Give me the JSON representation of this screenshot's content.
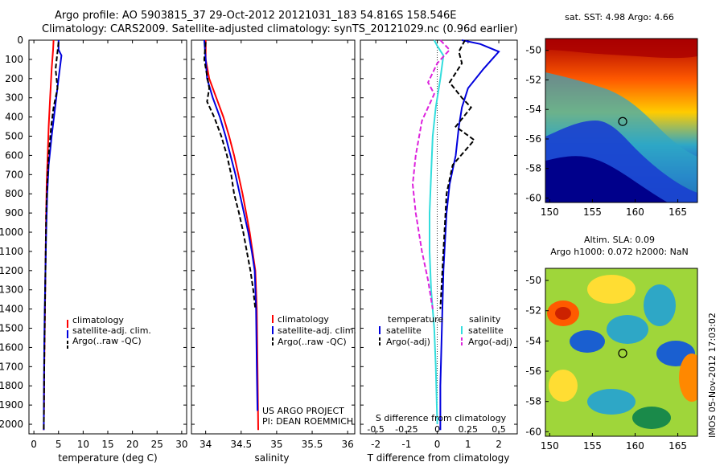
{
  "title": {
    "line1": "Argo profile: AO 5903815_37 29-Oct-2012 20121031_183 54.816S 158.546E",
    "line2": "Climatology: CARS2009. Satellite-adjusted climatology: synTS_20121029.nc (0.96d earlier)"
  },
  "colors": {
    "climatology": "#ff0000",
    "satellite": "#0000dd",
    "argo": "#000000",
    "salinity_sat": "#33dddd",
    "salinity_argo": "#dd22dd"
  },
  "chart_data": [
    {
      "type": "line",
      "panel": "temperature",
      "xlabel": "temperature (deg C)",
      "ylabel": "",
      "xlim": [
        -1,
        31
      ],
      "ylim": [
        2050,
        0
      ],
      "xticks": [
        0,
        5,
        10,
        15,
        20,
        25,
        30
      ],
      "yticks": [
        0,
        100,
        200,
        300,
        400,
        500,
        600,
        700,
        800,
        900,
        1000,
        1100,
        1200,
        1300,
        1400,
        1500,
        1600,
        1700,
        1800,
        1900,
        2000
      ],
      "legend": [
        "climatology",
        "satellite-adj. clim.",
        "Argo(..raw -QC)"
      ],
      "series": [
        {
          "name": "climatology",
          "style": "solid",
          "color_key": "climatology",
          "x": [
            4.0,
            3.9,
            3.6,
            3.3,
            3.0,
            2.8,
            2.6,
            2.5,
            2.4,
            2.3,
            2.2,
            2.1,
            2.05,
            2.0
          ],
          "y": [
            0,
            50,
            150,
            300,
            450,
            600,
            750,
            900,
            1100,
            1300,
            1500,
            1700,
            1900,
            2030
          ]
        },
        {
          "name": "satellite-adj. clim.",
          "style": "solid",
          "color_key": "satellite",
          "x": [
            5.0,
            5.0,
            5.6,
            5.0,
            4.3,
            3.6,
            3.0,
            2.7,
            2.5,
            2.35,
            2.2,
            2.1,
            2.05,
            2.0
          ],
          "y": [
            0,
            50,
            80,
            200,
            350,
            500,
            650,
            800,
            1000,
            1200,
            1400,
            1600,
            1800,
            2030
          ]
        },
        {
          "name": "Argo(..raw -QC)",
          "style": "dashed",
          "color_key": "argo",
          "x": [
            5.0,
            4.8,
            4.4,
            4.8,
            4.0,
            3.5,
            3.0,
            2.7,
            2.5,
            2.4,
            2.3,
            2.2,
            2.1,
            2.05,
            2.0
          ],
          "y": [
            10,
            60,
            150,
            250,
            350,
            450,
            600,
            750,
            900,
            1100,
            1300,
            1500,
            1700,
            1900,
            2030
          ]
        }
      ]
    },
    {
      "type": "line",
      "panel": "salinity",
      "xlabel": "salinity",
      "ylabel": "",
      "xlim": [
        33.8,
        36.1
      ],
      "ylim": [
        2050,
        0
      ],
      "xticks": [
        34,
        34.5,
        35,
        35.5,
        36
      ],
      "legend": [
        "climatology",
        "satellite-adj. clim.",
        "Argo(..raw -QC)"
      ],
      "annotation": [
        "US ARGO PROJECT",
        "PI: DEAN ROEMMICH"
      ],
      "series": [
        {
          "name": "climatology",
          "style": "solid",
          "color_key": "climatology",
          "x": [
            34.0,
            34.0,
            34.05,
            34.15,
            34.25,
            34.33,
            34.4,
            34.46,
            34.52,
            34.57,
            34.62,
            34.66,
            34.7,
            34.72,
            34.73,
            34.74
          ],
          "y": [
            0,
            100,
            200,
            300,
            400,
            500,
            600,
            700,
            800,
            900,
            1000,
            1100,
            1200,
            1400,
            1700,
            2030
          ]
        },
        {
          "name": "satellite-adj. clim.",
          "style": "solid",
          "color_key": "satellite",
          "x": [
            33.98,
            34.0,
            34.02,
            34.1,
            34.2,
            34.28,
            34.35,
            34.42,
            34.48,
            34.54,
            34.6,
            34.65,
            34.69,
            34.71,
            34.72,
            34.73
          ],
          "y": [
            0,
            100,
            200,
            300,
            400,
            500,
            600,
            700,
            800,
            900,
            1000,
            1100,
            1200,
            1400,
            1700,
            1930
          ]
        },
        {
          "name": "Argo(..raw -QC)",
          "style": "dashed",
          "color_key": "argo",
          "x": [
            34.0,
            33.98,
            34.05,
            34.02,
            34.12,
            34.22,
            34.3,
            34.36,
            34.4,
            34.47,
            34.53,
            34.58,
            34.63,
            34.67,
            34.7
          ],
          "y": [
            10,
            100,
            250,
            320,
            400,
            500,
            600,
            700,
            800,
            900,
            1000,
            1100,
            1200,
            1300,
            1400
          ]
        }
      ]
    },
    {
      "type": "line",
      "panel": "differences",
      "xlabel": "T difference from climatology",
      "xlabel_top": "S difference from climatology",
      "xlim": [
        -2.5,
        2.6
      ],
      "ylim": [
        2050,
        0
      ],
      "xticks": [
        -2,
        -1,
        0,
        1,
        2
      ],
      "xticks_s": [
        "-0.5",
        "-0.25",
        "0",
        "0.25",
        "0.5"
      ],
      "legend_temperature": {
        "title": "temperature",
        "items": [
          "satellite",
          "Argo(-adj)"
        ]
      },
      "legend_salinity": {
        "title": "salinity",
        "items": [
          "satellite",
          "Argo(-adj)"
        ]
      },
      "series": [
        {
          "name": "satellite",
          "group": "temperature",
          "style": "solid",
          "color_key": "satellite",
          "x": [
            0.8,
            1.4,
            2.0,
            1.5,
            1.0,
            0.8,
            0.7,
            0.6,
            0.4,
            0.3,
            0.2,
            0.15,
            0.1,
            0.1
          ],
          "y": [
            0,
            20,
            60,
            150,
            250,
            350,
            450,
            600,
            750,
            900,
            1200,
            1500,
            1800,
            2030
          ]
        },
        {
          "name": "Argo(-adj)",
          "group": "temperature",
          "style": "dashed",
          "color_key": "argo",
          "x": [
            0.9,
            0.7,
            0.8,
            0.4,
            0.8,
            1.1,
            0.6,
            1.2,
            0.5,
            0.3,
            0.2,
            0.1
          ],
          "y": [
            0,
            60,
            120,
            220,
            300,
            350,
            450,
            520,
            650,
            800,
            1100,
            1400
          ]
        },
        {
          "name": "satellite",
          "group": "salinity",
          "style": "solid",
          "color_key": "salinity_sat",
          "x": [
            -0.1,
            0.0,
            0.2,
            0.1,
            -0.05,
            -0.15,
            -0.2,
            -0.25,
            -0.25,
            -0.2,
            -0.1,
            -0.05,
            0.0
          ],
          "y": [
            0,
            30,
            80,
            200,
            350,
            500,
            700,
            900,
            1100,
            1300,
            1500,
            1700,
            2000
          ]
        },
        {
          "name": "Argo(-adj)",
          "group": "salinity",
          "style": "dashed",
          "color_key": "salinity_argo",
          "x": [
            0.1,
            0.4,
            0.0,
            -0.3,
            -0.1,
            -0.5,
            -0.7,
            -0.8,
            -0.7,
            -0.5,
            -0.3,
            -0.15
          ],
          "y": [
            0,
            50,
            120,
            220,
            280,
            420,
            600,
            750,
            900,
            1100,
            1250,
            1400
          ]
        }
      ]
    },
    {
      "type": "heatmap",
      "panel": "sst_map",
      "title": "sat. SST: 4.98 Argo: 4.66",
      "xlim": [
        149.5,
        167.3
      ],
      "ylim": [
        -60.3,
        -49.2
      ],
      "xticks": [
        150,
        155,
        160,
        165
      ],
      "yticks": [
        -50,
        -52,
        -54,
        -56,
        -58,
        -60
      ],
      "argo_position": [
        158.546,
        -54.816
      ]
    },
    {
      "type": "heatmap",
      "panel": "sla_map",
      "title": "Altim. SLA: 0.09",
      "subtitle": "Argo h1000: 0.072 h2000: NaN",
      "xlim": [
        149.5,
        167.3
      ],
      "ylim": [
        -60.3,
        -49.2
      ],
      "xticks": [
        150,
        155,
        160,
        165
      ],
      "yticks": [
        -50,
        -52,
        -54,
        -56,
        -58,
        -60
      ],
      "argo_position": [
        158.546,
        -54.816
      ]
    }
  ],
  "footer_stamp": "IMOS 05-Nov-2012 17:03:02"
}
